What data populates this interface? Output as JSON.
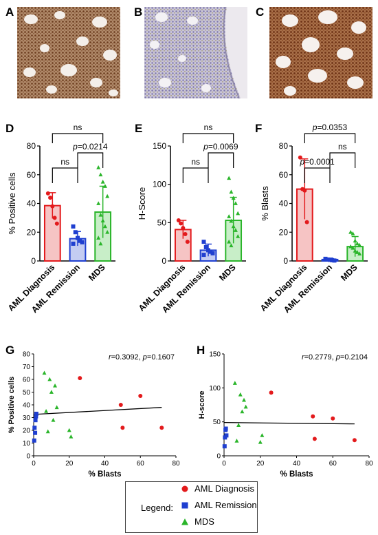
{
  "panels": {
    "A": "A",
    "B": "B",
    "C": "C",
    "D": "D",
    "E": "E",
    "F": "F",
    "G": "G",
    "H": "H"
  },
  "colors": {
    "aml_diagnosis": "#e31a1c",
    "aml_remission": "#1f3fd0",
    "mds": "#2ab52a",
    "micro_A_stain": "#7a4a2a",
    "micro_B_stain": "#8c86b8",
    "micro_C_stain": "#8a4a24"
  },
  "micrographs": [
    {
      "panel": "A",
      "description_icon": "brown-ihc-marrow"
    },
    {
      "panel": "B",
      "description_icon": "blue-ihc-marrow"
    },
    {
      "panel": "C",
      "description_icon": "brown-ihc-marrow"
    }
  ],
  "legend": {
    "title": "Legend:",
    "items": [
      {
        "label": "AML Diagnosis",
        "marker": "circle",
        "color": "#e31a1c"
      },
      {
        "label": "AML Remission",
        "marker": "square",
        "color": "#1f3fd0"
      },
      {
        "label": "MDS",
        "marker": "triangle",
        "color": "#2ab52a"
      }
    ]
  },
  "chart_data": [
    {
      "panel": "D",
      "type": "bar",
      "categories": [
        "AML Diagnosis",
        "AML Remission",
        "MDS"
      ],
      "values": [
        38.5,
        15.5,
        34
      ],
      "errors": [
        9,
        5,
        18
      ],
      "points": [
        [
          47,
          44,
          38,
          30,
          26
        ],
        [
          24,
          20,
          16,
          14,
          13,
          12
        ],
        [
          65,
          60,
          55,
          52,
          45,
          40,
          32,
          28,
          24,
          20,
          16,
          12
        ]
      ],
      "ylabel": "% Positive cells",
      "ylim": [
        0,
        80
      ],
      "yticks": [
        "0",
        "20",
        "40",
        "60",
        "80"
      ],
      "brackets": [
        {
          "from": 0,
          "to": 2,
          "label": "ns",
          "level": 1
        },
        {
          "from": 0,
          "to": 1,
          "label": "ns",
          "level": 0
        },
        {
          "from": 1,
          "to": 2,
          "label": "p=0.0214",
          "level": 0
        }
      ]
    },
    {
      "panel": "E",
      "type": "bar",
      "categories": [
        "AML Diagnosis",
        "AML Remission",
        "MDS"
      ],
      "values": [
        41,
        14,
        53
      ],
      "errors": [
        12,
        8,
        30
      ],
      "points": [
        [
          53,
          49,
          43,
          35,
          25
        ],
        [
          25,
          18,
          14,
          12,
          10,
          8
        ],
        [
          108,
          90,
          82,
          75,
          62,
          58,
          52,
          45,
          40,
          32,
          25,
          20
        ]
      ],
      "ylabel": "H-Score",
      "ylim": [
        0,
        150
      ],
      "yticks": [
        "0",
        "50",
        "100",
        "150"
      ],
      "brackets": [
        {
          "from": 0,
          "to": 2,
          "label": "ns",
          "level": 1
        },
        {
          "from": 0,
          "to": 1,
          "label": "ns",
          "level": 0
        },
        {
          "from": 1,
          "to": 2,
          "label": "p=0.0069",
          "level": 0
        }
      ]
    },
    {
      "panel": "F",
      "type": "bar",
      "categories": [
        "AML Diagnosis",
        "AML Remission",
        "MDS"
      ],
      "values": [
        50,
        1,
        10
      ],
      "errors": [
        21,
        1,
        7
      ],
      "points": [
        [
          72,
          50,
          49,
          27
        ],
        [
          1.5,
          1,
          0.8,
          0.5,
          0.3
        ],
        [
          20,
          19,
          14,
          12,
          11,
          10,
          9,
          7,
          6,
          5
        ]
      ],
      "ylabel": "% Blasts",
      "ylim": [
        0,
        80
      ],
      "yticks": [
        "0",
        "20",
        "40",
        "60",
        "80"
      ],
      "brackets": [
        {
          "from": 0,
          "to": 2,
          "label": "p=0.0353",
          "level": 1
        },
        {
          "from": 0,
          "to": 1,
          "label": "p=0.0001",
          "level": 0
        },
        {
          "from": 1,
          "to": 2,
          "label": "ns",
          "level": 0
        }
      ]
    },
    {
      "panel": "G",
      "type": "scatter",
      "xlabel": "% Blasts",
      "ylabel": "% Positive cells",
      "xlim": [
        0,
        80
      ],
      "ylim": [
        0,
        80
      ],
      "xticks": [
        "0",
        "20",
        "40",
        "60",
        "80"
      ],
      "yticks": [
        "0",
        "10",
        "20",
        "30",
        "40",
        "50",
        "60",
        "70",
        "80"
      ],
      "annotation": "r=0.3092, p=0.1607",
      "series": [
        {
          "group": "aml_diagnosis",
          "x": [
            26,
            49,
            50,
            60,
            72
          ],
          "y": [
            61,
            40,
            22,
            47,
            22
          ]
        },
        {
          "group": "aml_remission",
          "x": [
            0.3,
            0.5,
            0.8,
            1,
            1.3,
            1.5
          ],
          "y": [
            12,
            22,
            18,
            28,
            31,
            33
          ]
        },
        {
          "group": "mds",
          "x": [
            6,
            7,
            8,
            9,
            10,
            11,
            12,
            13,
            20,
            21
          ],
          "y": [
            65,
            35,
            19,
            60,
            50,
            28,
            55,
            38,
            20,
            15
          ]
        }
      ],
      "fit": {
        "x": [
          0,
          72
        ],
        "y": [
          32.5,
          38
        ]
      }
    },
    {
      "panel": "H",
      "type": "scatter",
      "xlabel": "% Blasts",
      "ylabel": "H-score",
      "xlim": [
        0,
        80
      ],
      "ylim": [
        0,
        150
      ],
      "xticks": [
        "0",
        "20",
        "40",
        "60",
        "80"
      ],
      "yticks": [
        "0",
        "50",
        "100",
        "150"
      ],
      "annotation": "r=0.2779, p=0.2104",
      "series": [
        {
          "group": "aml_diagnosis",
          "x": [
            26,
            49,
            50,
            60,
            72
          ],
          "y": [
            93,
            58,
            25,
            55,
            23
          ]
        },
        {
          "group": "aml_remission",
          "x": [
            0.3,
            0.5,
            0.8,
            1,
            1.3
          ],
          "y": [
            14,
            27,
            38,
            40,
            30
          ]
        },
        {
          "group": "mds",
          "x": [
            6,
            7,
            8,
            9,
            10,
            11,
            12,
            20,
            21
          ],
          "y": [
            107,
            22,
            45,
            90,
            65,
            82,
            72,
            20,
            30
          ]
        }
      ],
      "fit": {
        "x": [
          0,
          72
        ],
        "y": [
          49,
          47
        ]
      }
    }
  ]
}
